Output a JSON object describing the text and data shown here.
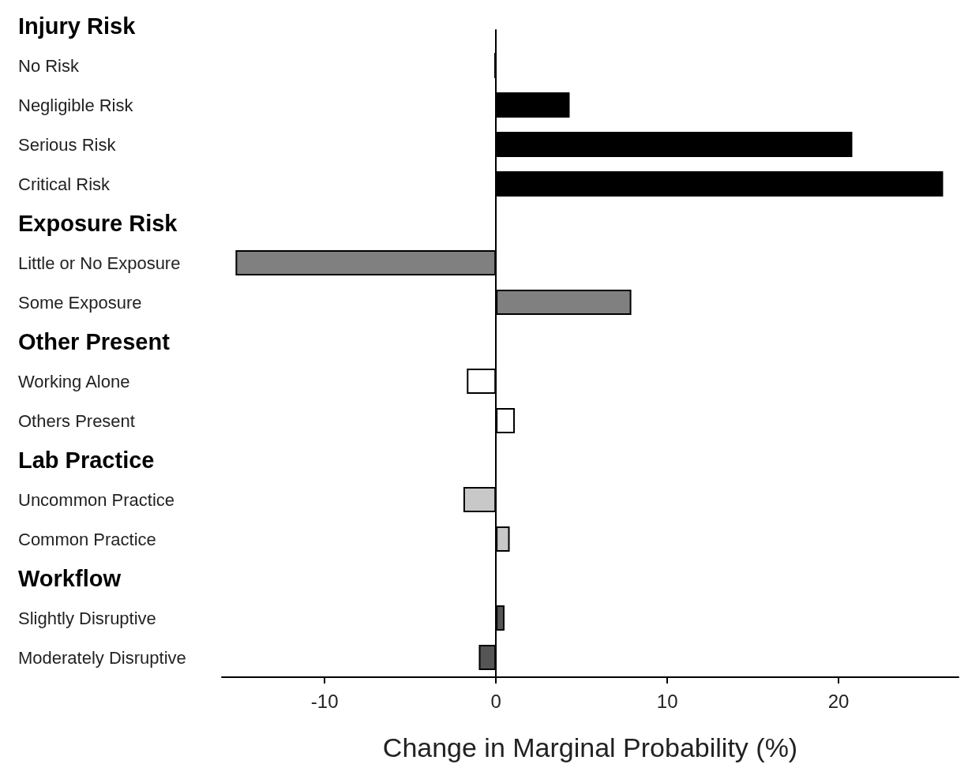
{
  "chart_data": {
    "type": "bar",
    "orientation": "horizontal",
    "xlabel": "Change in Marginal Probability (%)",
    "categories": [
      "Injury Risk",
      "No Risk",
      "Negligible Risk",
      "Serious Risk",
      "Critical Risk",
      "Exposure Risk",
      "Little or No Exposure",
      "Some Exposure",
      "Other Present",
      "Working Alone",
      "Others Present",
      "Lab Practice",
      "Uncommon Practice",
      "Common Practice",
      "Workflow",
      "Slightly Disruptive",
      "Moderately Disruptive"
    ],
    "values": [
      null,
      -0.1,
      4.3,
      20.8,
      26.1,
      null,
      -15.2,
      7.9,
      null,
      -1.7,
      1.1,
      null,
      -1.9,
      0.8,
      null,
      0.5,
      -1.0
    ],
    "colors": [
      null,
      "#000000",
      "#000000",
      "#000000",
      "#000000",
      null,
      "#808080",
      "#808080",
      null,
      "#ffffff",
      "#ffffff",
      null,
      "#c8c8c8",
      "#c8c8c8",
      null,
      "#555555",
      "#555555"
    ],
    "xlim": [
      -16,
      27
    ],
    "xticks": [
      -10,
      0,
      10,
      20
    ]
  }
}
